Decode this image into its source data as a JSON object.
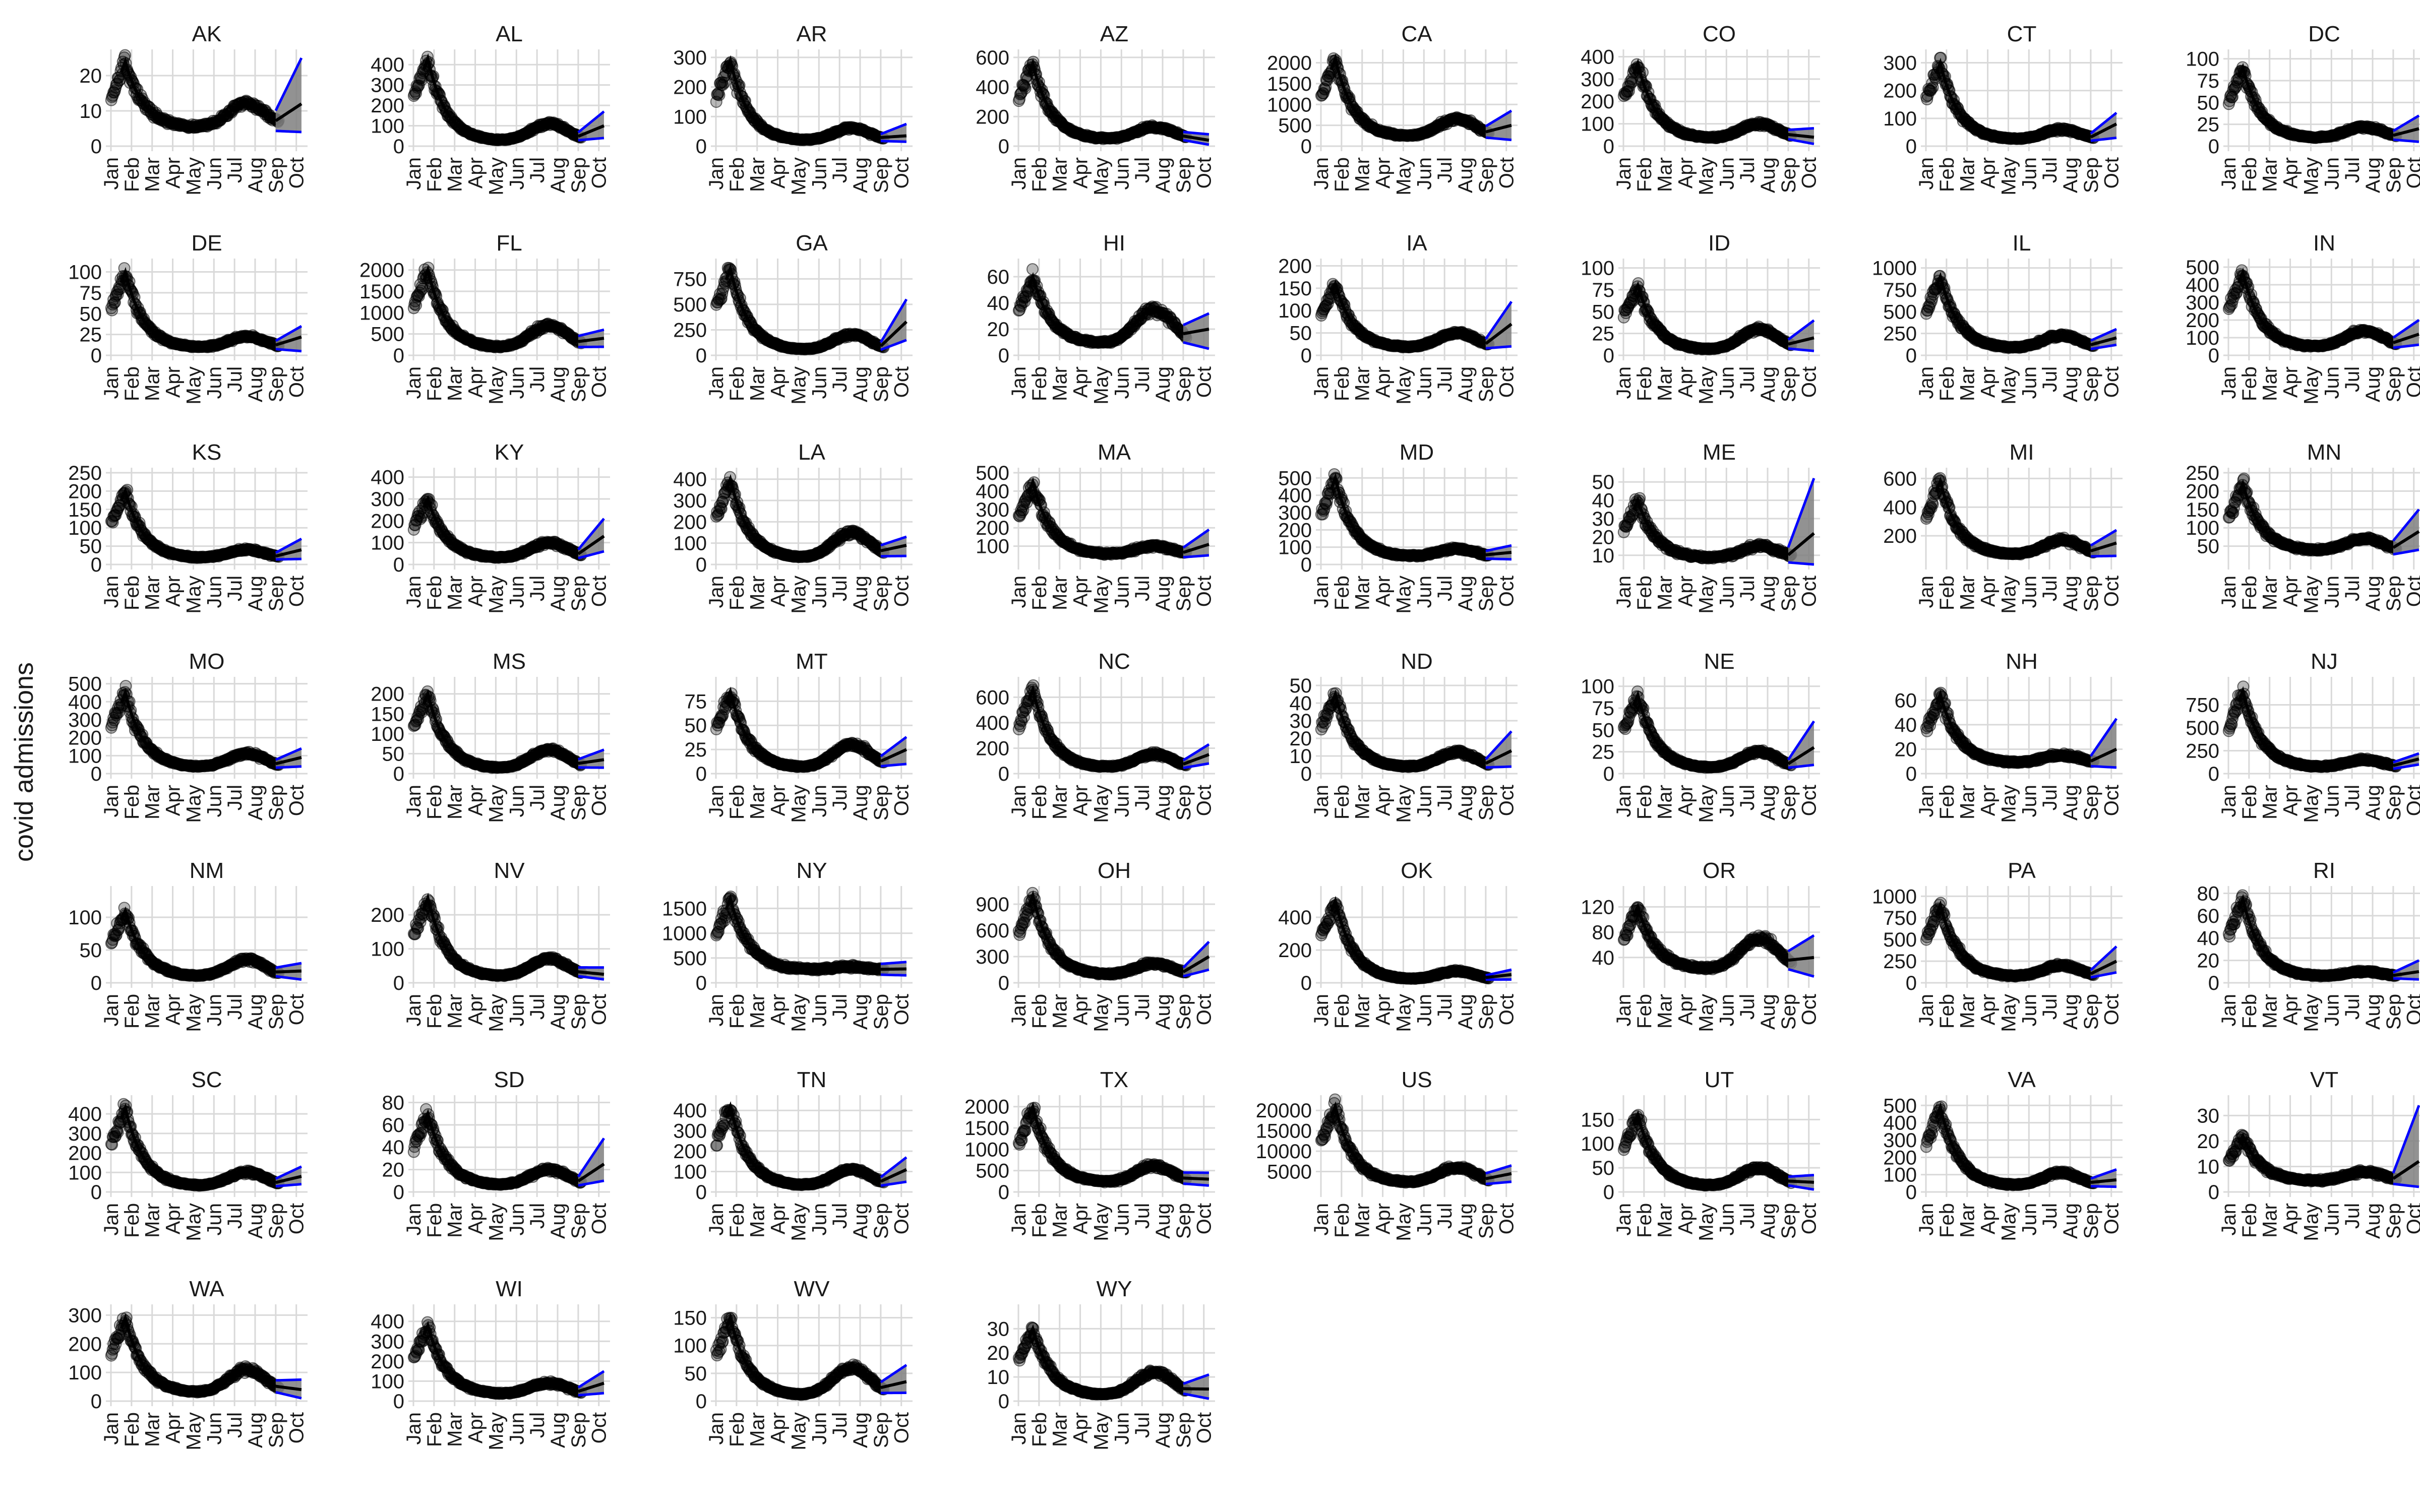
{
  "chart_data": {
    "type": "line",
    "layout": "small-multiples",
    "ylabel": "covid admissions",
    "x_ticks": [
      "Jan",
      "Feb",
      "Mar",
      "Apr",
      "May",
      "Jun",
      "Jul",
      "Aug",
      "Sep",
      "Oct"
    ],
    "colors": {
      "points": "#000000",
      "forecast_median": "#000000",
      "interval_fill": "#7f7f7f",
      "interval_bounds": "#0000ff",
      "grid": "#d9d9d9"
    },
    "grid": true,
    "panels": [
      {
        "state": "AK",
        "ymin": 0,
        "ymax": 26,
        "yticks": [
          0,
          10,
          20
        ],
        "peak": 24,
        "trough": 5,
        "summer": 12,
        "forecast_end": 12,
        "forecast_lo": 4,
        "forecast_hi": 25
      },
      {
        "state": "AL",
        "ymin": 0,
        "ymax": 450,
        "yticks": [
          0,
          100,
          200,
          300,
          400
        ],
        "peak": 430,
        "trough": 20,
        "summer": 110,
        "forecast_end": 100,
        "forecast_lo": 40,
        "forecast_hi": 170
      },
      {
        "state": "AR",
        "ymin": 0,
        "ymax": 310,
        "yticks": [
          0,
          100,
          200,
          300
        ],
        "peak": 290,
        "trough": 15,
        "summer": 60,
        "forecast_end": 35,
        "forecast_lo": 15,
        "forecast_hi": 75
      },
      {
        "state": "AZ",
        "ymin": 0,
        "ymax": 620,
        "yticks": [
          0,
          200,
          400,
          600
        ],
        "peak": 560,
        "trough": 40,
        "summer": 130,
        "forecast_end": 40,
        "forecast_lo": 10,
        "forecast_hi": 80
      },
      {
        "state": "CA",
        "ymin": 0,
        "ymax": 2200,
        "yticks": [
          0,
          500,
          1000,
          1500,
          2000
        ],
        "peak": 2100,
        "trough": 200,
        "summer": 650,
        "forecast_end": 500,
        "forecast_lo": 150,
        "forecast_hi": 850
      },
      {
        "state": "CO",
        "ymin": 0,
        "ymax": 410,
        "yticks": [
          0,
          100,
          200,
          300,
          400
        ],
        "peak": 370,
        "trough": 30,
        "summer": 100,
        "forecast_end": 40,
        "forecast_lo": 10,
        "forecast_hi": 80
      },
      {
        "state": "CT",
        "ymin": 0,
        "ymax": 330,
        "yticks": [
          0,
          100,
          200,
          300
        ],
        "peak": 300,
        "trough": 20,
        "summer": 60,
        "forecast_end": 80,
        "forecast_lo": 30,
        "forecast_hi": 120
      },
      {
        "state": "DC",
        "ymin": 0,
        "ymax": 105,
        "yticks": [
          0,
          25,
          50,
          75,
          100
        ],
        "peak": 90,
        "trough": 8,
        "summer": 22,
        "forecast_end": 20,
        "forecast_lo": 5,
        "forecast_hi": 35
      },
      {
        "state": "DE",
        "ymin": 0,
        "ymax": 110,
        "yticks": [
          0,
          25,
          50,
          75,
          100
        ],
        "peak": 100,
        "trough": 8,
        "summer": 22,
        "forecast_end": 22,
        "forecast_lo": 5,
        "forecast_hi": 35
      },
      {
        "state": "FL",
        "ymin": 0,
        "ymax": 2150,
        "yticks": [
          0,
          500,
          1000,
          1500,
          2000
        ],
        "peak": 2000,
        "trough": 150,
        "summer": 700,
        "forecast_end": 400,
        "forecast_lo": 200,
        "forecast_hi": 600
      },
      {
        "state": "GA",
        "ymin": 0,
        "ymax": 900,
        "yticks": [
          0,
          250,
          500,
          750
        ],
        "peak": 850,
        "trough": 40,
        "summer": 200,
        "forecast_end": 330,
        "forecast_lo": 150,
        "forecast_hi": 550
      },
      {
        "state": "HI",
        "ymin": 0,
        "ymax": 70,
        "yticks": [
          0,
          20,
          40,
          60
        ],
        "peak": 60,
        "trough": 8,
        "summer": 35,
        "forecast_end": 20,
        "forecast_lo": 5,
        "forecast_hi": 32
      },
      {
        "state": "IA",
        "ymin": 0,
        "ymax": 205,
        "yticks": [
          0,
          50,
          100,
          150,
          200
        ],
        "peak": 160,
        "trough": 15,
        "summer": 50,
        "forecast_end": 70,
        "forecast_lo": 20,
        "forecast_hi": 120
      },
      {
        "state": "ID",
        "ymin": 0,
        "ymax": 105,
        "yticks": [
          0,
          25,
          50,
          75,
          100
        ],
        "peak": 80,
        "trough": 5,
        "summer": 30,
        "forecast_end": 20,
        "forecast_lo": 5,
        "forecast_hi": 40
      },
      {
        "state": "IL",
        "ymin": 0,
        "ymax": 1050,
        "yticks": [
          0,
          250,
          500,
          750,
          1000
        ],
        "peak": 900,
        "trough": 70,
        "summer": 230,
        "forecast_end": 200,
        "forecast_lo": 120,
        "forecast_hi": 300
      },
      {
        "state": "IN",
        "ymin": 0,
        "ymax": 520,
        "yticks": [
          0,
          100,
          200,
          300,
          400,
          500
        ],
        "peak": 470,
        "trough": 40,
        "summer": 140,
        "forecast_end": 120,
        "forecast_lo": 60,
        "forecast_hi": 200
      },
      {
        "state": "KS",
        "ymin": 0,
        "ymax": 250,
        "yticks": [
          0,
          50,
          100,
          150,
          200,
          250
        ],
        "peak": 200,
        "trough": 15,
        "summer": 40,
        "forecast_end": 40,
        "forecast_lo": 15,
        "forecast_hi": 70
      },
      {
        "state": "KY",
        "ymin": 0,
        "ymax": 420,
        "yticks": [
          0,
          100,
          200,
          300,
          400
        ],
        "peak": 300,
        "trough": 25,
        "summer": 100,
        "forecast_end": 130,
        "forecast_lo": 60,
        "forecast_hi": 210
      },
      {
        "state": "LA",
        "ymin": 0,
        "ymax": 430,
        "yticks": [
          0,
          100,
          200,
          300,
          400
        ],
        "peak": 400,
        "trough": 25,
        "summer": 150,
        "forecast_end": 90,
        "forecast_lo": 40,
        "forecast_hi": 130
      },
      {
        "state": "MA",
        "ymin": 0,
        "ymax": 500,
        "yticks": [
          100,
          200,
          300,
          400,
          500
        ],
        "peak": 450,
        "trough": 50,
        "summer": 100,
        "forecast_end": 110,
        "forecast_lo": 50,
        "forecast_hi": 190
      },
      {
        "state": "MD",
        "ymin": 0,
        "ymax": 530,
        "yticks": [
          0,
          100,
          200,
          300,
          400,
          500
        ],
        "peak": 500,
        "trough": 40,
        "summer": 90,
        "forecast_end": 70,
        "forecast_lo": 30,
        "forecast_hi": 110
      },
      {
        "state": "ME",
        "ymin": 5,
        "ymax": 55,
        "yticks": [
          10,
          20,
          30,
          40,
          50
        ],
        "peak": 40,
        "trough": 8,
        "summer": 15,
        "forecast_end": 22,
        "forecast_lo": 5,
        "forecast_hi": 52
      },
      {
        "state": "MI",
        "ymin": 0,
        "ymax": 640,
        "yticks": [
          200,
          400,
          600
        ],
        "peak": 580,
        "trough": 60,
        "summer": 170,
        "forecast_end": 150,
        "forecast_lo": 60,
        "forecast_hi": 240
      },
      {
        "state": "MN",
        "ymin": 0,
        "ymax": 250,
        "yticks": [
          50,
          100,
          150,
          200,
          250
        ],
        "peak": 220,
        "trough": 35,
        "summer": 70,
        "forecast_end": 90,
        "forecast_lo": 40,
        "forecast_hi": 150
      },
      {
        "state": "MO",
        "ymin": 0,
        "ymax": 510,
        "yticks": [
          0,
          100,
          200,
          300,
          400,
          500
        ],
        "peak": 450,
        "trough": 30,
        "summer": 110,
        "forecast_end": 90,
        "forecast_lo": 40,
        "forecast_hi": 140
      },
      {
        "state": "MS",
        "ymin": 0,
        "ymax": 230,
        "yticks": [
          0,
          50,
          100,
          150,
          200
        ],
        "peak": 200,
        "trough": 10,
        "summer": 60,
        "forecast_end": 35,
        "forecast_lo": 15,
        "forecast_hi": 60
      },
      {
        "state": "MT",
        "ymin": 0,
        "ymax": 95,
        "yticks": [
          0,
          25,
          50,
          75
        ],
        "peak": 85,
        "trough": 5,
        "summer": 30,
        "forecast_end": 25,
        "forecast_lo": 10,
        "forecast_hi": 38
      },
      {
        "state": "NC",
        "ymin": 0,
        "ymax": 720,
        "yticks": [
          0,
          200,
          400,
          600
        ],
        "peak": 660,
        "trough": 40,
        "summer": 150,
        "forecast_end": 150,
        "forecast_lo": 80,
        "forecast_hi": 230
      },
      {
        "state": "ND",
        "ymin": 0,
        "ymax": 52,
        "yticks": [
          0,
          10,
          20,
          30,
          40,
          50
        ],
        "peak": 45,
        "trough": 3,
        "summer": 12,
        "forecast_end": 13,
        "forecast_lo": 4,
        "forecast_hi": 24
      },
      {
        "state": "NE",
        "ymin": 0,
        "ymax": 105,
        "yticks": [
          0,
          25,
          50,
          75,
          100
        ],
        "peak": 90,
        "trough": 5,
        "summer": 25,
        "forecast_end": 30,
        "forecast_lo": 10,
        "forecast_hi": 60
      },
      {
        "state": "NH",
        "ymin": 0,
        "ymax": 75,
        "yticks": [
          0,
          20,
          40,
          60
        ],
        "peak": 65,
        "trough": 8,
        "summer": 15,
        "forecast_end": 20,
        "forecast_lo": 5,
        "forecast_hi": 45
      },
      {
        "state": "NJ",
        "ymin": 0,
        "ymax": 1000,
        "yticks": [
          0,
          250,
          500,
          750
        ],
        "peak": 900,
        "trough": 60,
        "summer": 150,
        "forecast_end": 160,
        "forecast_lo": 100,
        "forecast_hi": 220
      },
      {
        "state": "NM",
        "ymin": 0,
        "ymax": 140,
        "yticks": [
          0,
          50,
          100
        ],
        "peak": 110,
        "trough": 8,
        "summer": 35,
        "forecast_end": 18,
        "forecast_lo": 5,
        "forecast_hi": 30
      },
      {
        "state": "NV",
        "ymin": 0,
        "ymax": 270,
        "yticks": [
          0,
          100,
          200
        ],
        "peak": 250,
        "trough": 15,
        "summer": 70,
        "forecast_end": 25,
        "forecast_lo": 10,
        "forecast_hi": 45
      },
      {
        "state": "NY",
        "ymin": 0,
        "ymax": 1850,
        "yticks": [
          0,
          500,
          1000,
          1500
        ],
        "peak": 1700,
        "trough": 250,
        "summer": 320,
        "forecast_end": 280,
        "forecast_lo": 150,
        "forecast_hi": 420
      },
      {
        "state": "OH",
        "ymin": 0,
        "ymax": 1050,
        "yticks": [
          0,
          300,
          600,
          900
        ],
        "peak": 1000,
        "trough": 80,
        "summer": 220,
        "forecast_end": 300,
        "forecast_lo": 150,
        "forecast_hi": 470
      },
      {
        "state": "OK",
        "ymin": 0,
        "ymax": 560,
        "yticks": [
          0,
          200,
          400
        ],
        "peak": 500,
        "trough": 15,
        "summer": 70,
        "forecast_end": 50,
        "forecast_lo": 20,
        "forecast_hi": 80
      },
      {
        "state": "OR",
        "ymin": 0,
        "ymax": 145,
        "yticks": [
          40,
          80,
          120
        ],
        "peak": 120,
        "trough": 20,
        "summer": 70,
        "forecast_end": 40,
        "forecast_lo": 10,
        "forecast_hi": 75
      },
      {
        "state": "PA",
        "ymin": 0,
        "ymax": 1060,
        "yticks": [
          0,
          250,
          500,
          750,
          1000
        ],
        "peak": 900,
        "trough": 60,
        "summer": 200,
        "forecast_end": 250,
        "forecast_lo": 120,
        "forecast_hi": 420
      },
      {
        "state": "RI",
        "ymin": 0,
        "ymax": 82,
        "yticks": [
          0,
          20,
          40,
          60,
          80
        ],
        "peak": 75,
        "trough": 5,
        "summer": 10,
        "forecast_end": 10,
        "forecast_lo": 3,
        "forecast_hi": 20
      },
      {
        "state": "SC",
        "ymin": 0,
        "ymax": 470,
        "yticks": [
          0,
          100,
          200,
          300,
          400
        ],
        "peak": 430,
        "trough": 25,
        "summer": 100,
        "forecast_end": 80,
        "forecast_lo": 40,
        "forecast_hi": 130
      },
      {
        "state": "SD",
        "ymin": 0,
        "ymax": 82,
        "yticks": [
          0,
          20,
          40,
          60,
          80
        ],
        "peak": 70,
        "trough": 5,
        "summer": 20,
        "forecast_end": 25,
        "forecast_lo": 10,
        "forecast_hi": 48
      },
      {
        "state": "TN",
        "ymin": 0,
        "ymax": 450,
        "yticks": [
          0,
          100,
          200,
          300,
          400
        ],
        "peak": 420,
        "trough": 25,
        "summer": 110,
        "forecast_end": 110,
        "forecast_lo": 50,
        "forecast_hi": 170
      },
      {
        "state": "TX",
        "ymin": 0,
        "ymax": 2150,
        "yticks": [
          0,
          500,
          1000,
          1500,
          2000
        ],
        "peak": 2000,
        "trough": 200,
        "summer": 600,
        "forecast_end": 300,
        "forecast_lo": 150,
        "forecast_hi": 450
      },
      {
        "state": "US",
        "ymin": 0,
        "ymax": 22500,
        "yticks": [
          5000,
          10000,
          15000,
          20000
        ],
        "peak": 21000,
        "trough": 2000,
        "summer": 6000,
        "forecast_end": 4500,
        "forecast_lo": 2500,
        "forecast_hi": 6500
      },
      {
        "state": "UT",
        "ymin": 0,
        "ymax": 190,
        "yticks": [
          0,
          50,
          100,
          150
        ],
        "peak": 160,
        "trough": 10,
        "summer": 50,
        "forecast_end": 20,
        "forecast_lo": 5,
        "forecast_hi": 35
      },
      {
        "state": "VA",
        "ymin": 0,
        "ymax": 530,
        "yticks": [
          0,
          100,
          200,
          300,
          400,
          500
        ],
        "peak": 490,
        "trough": 30,
        "summer": 110,
        "forecast_end": 70,
        "forecast_lo": 30,
        "forecast_hi": 130
      },
      {
        "state": "VT",
        "ymin": 0,
        "ymax": 36,
        "yticks": [
          0,
          10,
          20,
          30
        ],
        "peak": 22,
        "trough": 4,
        "summer": 8,
        "forecast_end": 12,
        "forecast_lo": 2,
        "forecast_hi": 34
      },
      {
        "state": "WA",
        "ymin": 0,
        "ymax": 320,
        "yticks": [
          0,
          100,
          200,
          300
        ],
        "peak": 290,
        "trough": 25,
        "summer": 110,
        "forecast_end": 40,
        "forecast_lo": 10,
        "forecast_hi": 75
      },
      {
        "state": "WI",
        "ymin": 0,
        "ymax": 460,
        "yticks": [
          0,
          100,
          200,
          300,
          400
        ],
        "peak": 380,
        "trough": 30,
        "summer": 90,
        "forecast_end": 90,
        "forecast_lo": 40,
        "forecast_hi": 150
      },
      {
        "state": "WV",
        "ymin": 0,
        "ymax": 165,
        "yticks": [
          0,
          50,
          100,
          150
        ],
        "peak": 150,
        "trough": 8,
        "summer": 60,
        "forecast_end": 35,
        "forecast_lo": 15,
        "forecast_hi": 65
      },
      {
        "state": "WY",
        "ymin": 0,
        "ymax": 38,
        "yticks": [
          0,
          10,
          20,
          30
        ],
        "peak": 30,
        "trough": 2,
        "summer": 12,
        "forecast_end": 5,
        "forecast_lo": 1,
        "forecast_hi": 11
      }
    ]
  }
}
